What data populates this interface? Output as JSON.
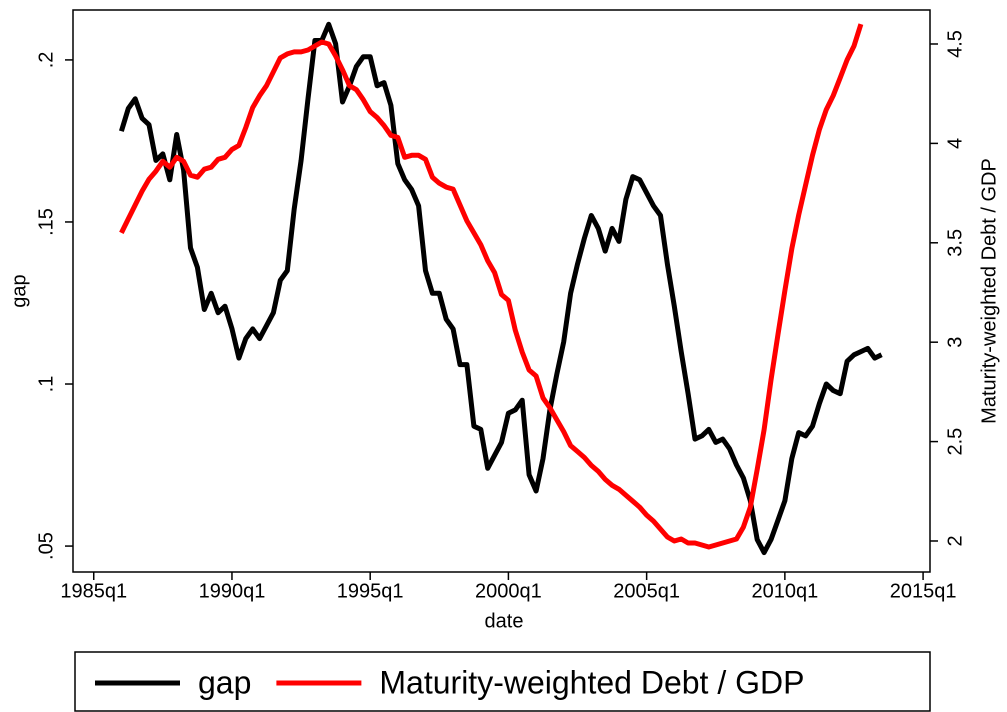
{
  "chart_data": {
    "type": "line",
    "x_label": "date",
    "y_label": "gap",
    "y2_label": "Maturity-weighted Debt / GDP",
    "x": [
      "1986q1",
      "1986q2",
      "1986q3",
      "1986q4",
      "1987q1",
      "1987q2",
      "1987q3",
      "1987q4",
      "1988q1",
      "1988q2",
      "1988q3",
      "1988q4",
      "1989q1",
      "1989q2",
      "1989q3",
      "1989q4",
      "1990q1",
      "1990q2",
      "1990q3",
      "1990q4",
      "1991q1",
      "1991q2",
      "1991q3",
      "1991q4",
      "1992q1",
      "1992q2",
      "1992q3",
      "1992q4",
      "1993q1",
      "1993q2",
      "1993q3",
      "1993q4",
      "1994q1",
      "1994q2",
      "1994q3",
      "1994q4",
      "1995q1",
      "1995q2",
      "1995q3",
      "1995q4",
      "1996q1",
      "1996q2",
      "1996q3",
      "1996q4",
      "1997q1",
      "1997q2",
      "1997q3",
      "1997q4",
      "1998q1",
      "1998q2",
      "1998q3",
      "1998q4",
      "1999q1",
      "1999q2",
      "1999q3",
      "1999q4",
      "2000q1",
      "2000q2",
      "2000q3",
      "2000q4",
      "2001q1",
      "2001q2",
      "2001q3",
      "2001q4",
      "2002q1",
      "2002q2",
      "2002q3",
      "2002q4",
      "2003q1",
      "2003q2",
      "2003q3",
      "2003q4",
      "2004q1",
      "2004q2",
      "2004q3",
      "2004q4",
      "2005q1",
      "2005q2",
      "2005q3",
      "2005q4",
      "2006q1",
      "2006q2",
      "2006q3",
      "2006q4",
      "2007q1",
      "2007q2",
      "2007q3",
      "2007q4",
      "2008q1",
      "2008q2",
      "2008q3",
      "2008q4",
      "2009q1",
      "2009q2",
      "2009q3",
      "2009q4",
      "2010q1",
      "2010q2",
      "2010q3",
      "2010q4",
      "2011q1",
      "2011q2",
      "2011q3",
      "2011q4",
      "2012q1",
      "2012q2",
      "2012q3",
      "2012q4",
      "2013q1",
      "2013q2",
      "2013q3"
    ],
    "series": [
      {
        "name": "gap",
        "color": "#000000",
        "values": [
          0.178,
          0.185,
          0.188,
          0.182,
          0.18,
          0.169,
          0.171,
          0.163,
          0.177,
          0.166,
          0.142,
          0.136,
          0.123,
          0.128,
          0.122,
          0.124,
          0.117,
          0.108,
          0.114,
          0.117,
          0.114,
          0.118,
          0.122,
          0.132,
          0.135,
          0.154,
          0.169,
          0.188,
          0.206,
          0.206,
          0.211,
          0.205,
          0.187,
          0.192,
          0.198,
          0.201,
          0.201,
          0.192,
          0.193,
          0.186,
          0.168,
          0.163,
          0.16,
          0.155,
          0.135,
          0.128,
          0.128,
          0.12,
          0.117,
          0.106,
          0.106,
          0.087,
          0.086,
          0.074,
          0.078,
          0.082,
          0.091,
          0.092,
          0.095,
          0.072,
          0.067,
          0.077,
          0.092,
          0.103,
          0.113,
          0.128,
          0.137,
          0.145,
          0.152,
          0.148,
          0.141,
          0.148,
          0.144,
          0.157,
          0.164,
          0.163,
          0.159,
          0.155,
          0.152,
          0.137,
          0.124,
          0.11,
          0.097,
          0.083,
          0.084,
          0.086,
          0.082,
          0.083,
          0.08,
          0.075,
          0.071,
          0.064,
          0.052,
          0.048,
          0.052,
          0.058,
          0.064,
          0.077,
          0.085,
          0.084,
          0.087,
          0.094,
          0.1,
          0.098,
          0.097,
          0.107,
          0.109,
          0.11,
          0.111,
          0.108,
          0.109
        ]
      },
      {
        "name": "Maturity-weighted Debt / GDP",
        "color": "#ff0000",
        "axis": "y2",
        "values": [
          3.55,
          3.62,
          3.69,
          3.76,
          3.82,
          3.86,
          3.91,
          3.88,
          3.93,
          3.91,
          3.84,
          3.83,
          3.87,
          3.88,
          3.92,
          3.93,
          3.97,
          3.99,
          4.08,
          4.18,
          4.24,
          4.29,
          4.36,
          4.43,
          4.45,
          4.46,
          4.46,
          4.47,
          4.49,
          4.51,
          4.5,
          4.44,
          4.37,
          4.29,
          4.27,
          4.22,
          4.16,
          4.13,
          4.09,
          4.04,
          4.03,
          3.93,
          3.94,
          3.94,
          3.92,
          3.83,
          3.8,
          3.78,
          3.77,
          3.69,
          3.61,
          3.55,
          3.49,
          3.41,
          3.35,
          3.24,
          3.21,
          3.06,
          2.95,
          2.86,
          2.83,
          2.72,
          2.67,
          2.61,
          2.55,
          2.48,
          2.45,
          2.42,
          2.38,
          2.35,
          2.31,
          2.28,
          2.26,
          2.23,
          2.2,
          2.17,
          2.13,
          2.1,
          2.06,
          2.02,
          2.0,
          2.01,
          1.99,
          1.99,
          1.98,
          1.97,
          1.98,
          1.99,
          2.0,
          2.01,
          2.07,
          2.17,
          2.36,
          2.56,
          2.81,
          3.04,
          3.26,
          3.47,
          3.64,
          3.79,
          3.94,
          4.07,
          4.17,
          4.24,
          4.33,
          4.42,
          4.49,
          4.6,
          null,
          null,
          null
        ]
      }
    ],
    "xlim": [
      "1984q2",
      "2015q2"
    ],
    "xticks": [
      "1985q1",
      "1990q1",
      "1995q1",
      "2000q1",
      "2005q1",
      "2010q1",
      "2015q1"
    ],
    "ylim": [
      0.042,
      0.2154
    ],
    "yticks": [
      {
        "value": 0.05,
        "label": ".05"
      },
      {
        "value": 0.1,
        "label": ".1"
      },
      {
        "value": 0.15,
        "label": ".15"
      },
      {
        "value": 0.2,
        "label": ".2"
      }
    ],
    "y2lim": [
      1.844,
      4.671
    ],
    "y2ticks": [
      2,
      2.5,
      3,
      3.5,
      4,
      4.5
    ],
    "legend": "bottom"
  }
}
